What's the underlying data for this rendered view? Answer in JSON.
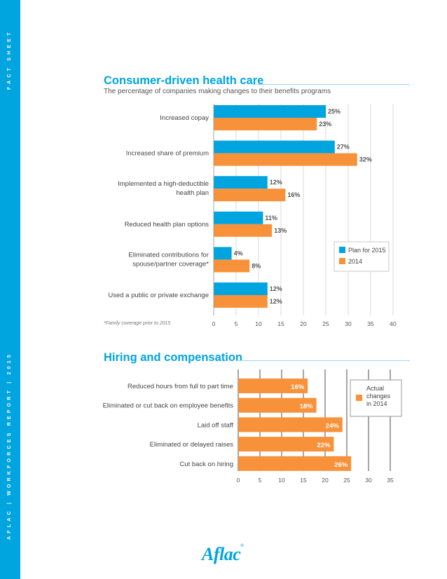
{
  "sidebar": {
    "top_text": "FACT SHEET",
    "bottom_text": "AFLAC | WORKFORCES REPORT | 2015"
  },
  "logo_text": "Aflac",
  "colors": {
    "accent": "#00a4df",
    "orange": "#f7923a",
    "blue": "#00a4df"
  },
  "chart_data": [
    {
      "type": "bar",
      "orientation": "horizontal",
      "title": "Consumer-driven health care",
      "subtitle": "The percentage of companies making changes to their benefits programs",
      "categories": [
        "Increased copay",
        "Increased share of premium",
        "Implemented a high-deductible health plan",
        "Reduced health plan options",
        "Eliminated contributions for spouse/partner coverage*",
        "Used a public or private exchange"
      ],
      "series": [
        {
          "name": "Plan for 2015",
          "color": "#00a4df",
          "values": [
            25,
            27,
            12,
            11,
            4,
            12
          ]
        },
        {
          "name": "2014",
          "color": "#f7923a",
          "values": [
            23,
            32,
            16,
            13,
            8,
            12
          ]
        }
      ],
      "value_labels": [
        [
          "25%",
          "27%",
          "12%",
          "11%",
          "4%",
          "12%"
        ],
        [
          "23%",
          "32%",
          "16%",
          "13%",
          "8%",
          "12%"
        ]
      ],
      "xlim": [
        0,
        40
      ],
      "xticks": [
        "0",
        "5",
        "10",
        "15",
        "20",
        "25",
        "30",
        "35",
        "40"
      ],
      "grid": true,
      "legend_position": "bottom-right",
      "footnote": "*Family coverage prior to 2015"
    },
    {
      "type": "bar",
      "orientation": "horizontal",
      "title": "Hiring and compensation",
      "categories": [
        "Reduced hours from full to part time",
        "Eliminated or cut back on employee benefits",
        "Laid off staff",
        "Eliminated or delayed raises",
        "Cut back on hiring"
      ],
      "series": [
        {
          "name": "Actual changes in 2014",
          "color": "#f7923a",
          "values": [
            16,
            18,
            24,
            22,
            26
          ]
        }
      ],
      "value_labels": [
        "16%",
        "18%",
        "24%",
        "22%",
        "26%"
      ],
      "xlim": [
        0,
        35
      ],
      "xticks": [
        "0",
        "5",
        "10",
        "15",
        "20",
        "25",
        "30",
        "35"
      ],
      "grid": true,
      "legend_position": "top-right"
    }
  ]
}
